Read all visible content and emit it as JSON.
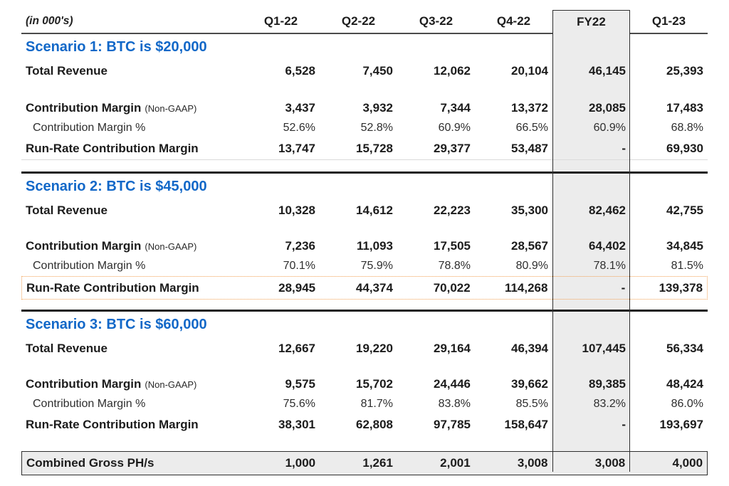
{
  "colors": {
    "scenario_title_blue": "#1268c8",
    "fy22_band_fill": "#ececec",
    "fy22_band_border": "#2e2e2e",
    "highlight_dotted_orange": "#f2a155",
    "header_rule_gray": "#4b4b4b",
    "section_divider_black": "#1d1d1d"
  },
  "chart_data": {
    "type": "table",
    "unit_label": "(in 000's)",
    "columns": [
      "Q1-22",
      "Q2-22",
      "Q3-22",
      "Q4-22",
      "FY22",
      "Q1-23"
    ],
    "highlighted_column": "FY22",
    "highlighted_row": "Scenario 2 Run-Rate Contribution Margin",
    "sections": [
      {
        "title": "Scenario 1: BTC is $20,000",
        "rows": [
          {
            "label": "Total Revenue",
            "values": [
              "6,528",
              "7,450",
              "12,062",
              "20,104",
              "46,145",
              "25,393"
            ]
          },
          {
            "label": "Contribution Margin",
            "label_suffix": "(Non-GAAP)",
            "values": [
              "3,437",
              "3,932",
              "7,344",
              "13,372",
              "28,085",
              "17,483"
            ]
          },
          {
            "label": "Contribution Margin %",
            "values": [
              "52.6%",
              "52.8%",
              "60.9%",
              "66.5%",
              "60.9%",
              "68.8%"
            ]
          },
          {
            "label": "Run-Rate Contribution Margin",
            "values": [
              "13,747",
              "15,728",
              "29,377",
              "53,487",
              "-",
              "69,930"
            ]
          }
        ]
      },
      {
        "title": "Scenario 2: BTC is $45,000",
        "rows": [
          {
            "label": "Total Revenue",
            "values": [
              "10,328",
              "14,612",
              "22,223",
              "35,300",
              "82,462",
              "42,755"
            ]
          },
          {
            "label": "Contribution Margin",
            "label_suffix": "(Non-GAAP)",
            "values": [
              "7,236",
              "11,093",
              "17,505",
              "28,567",
              "64,402",
              "34,845"
            ]
          },
          {
            "label": "Contribution Margin %",
            "values": [
              "70.1%",
              "75.9%",
              "78.8%",
              "80.9%",
              "78.1%",
              "81.5%"
            ]
          },
          {
            "label": "Run-Rate Contribution Margin",
            "values": [
              "28,945",
              "44,374",
              "70,022",
              "114,268",
              "-",
              "139,378"
            ]
          }
        ]
      },
      {
        "title": "Scenario 3: BTC is $60,000",
        "rows": [
          {
            "label": "Total Revenue",
            "values": [
              "12,667",
              "19,220",
              "29,164",
              "46,394",
              "107,445",
              "56,334"
            ]
          },
          {
            "label": "Contribution Margin",
            "label_suffix": "(Non-GAAP)",
            "values": [
              "9,575",
              "15,702",
              "24,446",
              "39,662",
              "89,385",
              "48,424"
            ]
          },
          {
            "label": "Contribution Margin %",
            "values": [
              "75.6%",
              "81.7%",
              "83.8%",
              "85.5%",
              "83.2%",
              "86.0%"
            ]
          },
          {
            "label": "Run-Rate Contribution Margin",
            "values": [
              "38,301",
              "62,808",
              "97,785",
              "158,647",
              "-",
              "193,697"
            ]
          }
        ]
      }
    ],
    "footer": {
      "label": "Combined Gross PH/s",
      "values": [
        "1,000",
        "1,261",
        "2,001",
        "3,008",
        "3,008",
        "4,000"
      ]
    }
  }
}
